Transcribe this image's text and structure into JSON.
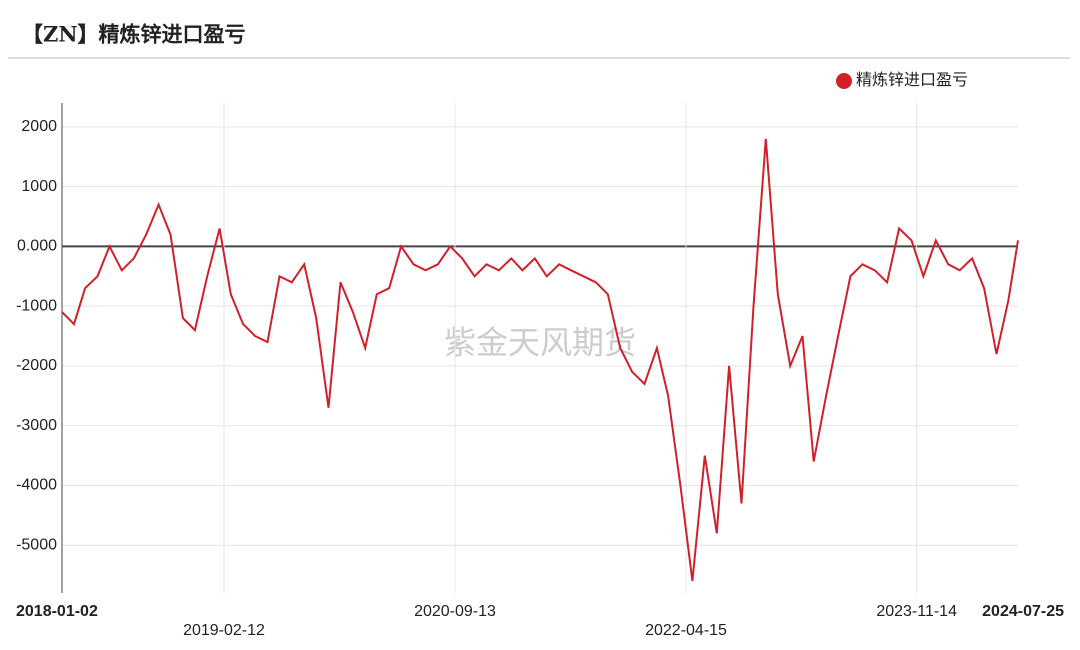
{
  "chart_data": {
    "type": "line",
    "title": "【ZN】精炼锌进口盈亏",
    "watermark": "紫金天风期货",
    "x": [
      "2018-01-02",
      "2018-02-01",
      "2018-03-01",
      "2018-04-01",
      "2018-05-01",
      "2018-06-01",
      "2018-07-01",
      "2018-08-01",
      "2018-09-01",
      "2018-10-01",
      "2018-11-01",
      "2018-12-01",
      "2019-01-01",
      "2019-02-01",
      "2019-03-01",
      "2019-04-01",
      "2019-05-01",
      "2019-06-01",
      "2019-07-01",
      "2019-08-01",
      "2019-09-01",
      "2019-10-01",
      "2019-11-01",
      "2019-12-01",
      "2020-01-01",
      "2020-02-01",
      "2020-03-01",
      "2020-04-01",
      "2020-05-01",
      "2020-06-01",
      "2020-07-01",
      "2020-08-01",
      "2020-09-01",
      "2020-10-01",
      "2020-11-01",
      "2020-12-01",
      "2021-01-01",
      "2021-02-01",
      "2021-03-01",
      "2021-04-01",
      "2021-05-01",
      "2021-06-01",
      "2021-07-01",
      "2021-08-01",
      "2021-09-01",
      "2021-10-01",
      "2021-11-01",
      "2021-12-01",
      "2022-01-01",
      "2022-02-01",
      "2022-03-01",
      "2022-04-01",
      "2022-05-01",
      "2022-06-01",
      "2022-07-01",
      "2022-08-01",
      "2022-09-01",
      "2022-10-01",
      "2022-11-01",
      "2022-12-01",
      "2023-01-01",
      "2023-02-01",
      "2023-03-01",
      "2023-04-01",
      "2023-05-01",
      "2023-06-01",
      "2023-07-01",
      "2023-08-01",
      "2023-09-01",
      "2023-10-01",
      "2023-11-01",
      "2023-12-01",
      "2024-01-01",
      "2024-02-01",
      "2024-03-01",
      "2024-04-01",
      "2024-05-01",
      "2024-06-01",
      "2024-07-01",
      "2024-07-25"
    ],
    "series": [
      {
        "name": "精炼锌进口盈亏",
        "color": "#d0212a",
        "values": [
          -1100,
          -1300,
          -700,
          -500,
          0,
          -400,
          -200,
          200,
          700,
          200,
          -1200,
          -1400,
          -500,
          300,
          -800,
          -1300,
          -1500,
          -1600,
          -500,
          -600,
          -300,
          -1200,
          -2700,
          -600,
          -1100,
          -1700,
          -800,
          -700,
          0,
          -300,
          -400,
          -300,
          0,
          -200,
          -500,
          -300,
          -400,
          -200,
          -400,
          -200,
          -500,
          -300,
          -400,
          -500,
          -600,
          -800,
          -1700,
          -2100,
          -2300,
          -1700,
          -2500,
          -4000,
          -5600,
          -3500,
          -4800,
          -2000,
          -4300,
          -1000,
          1800,
          -800,
          -2000,
          -1500,
          -3600,
          -2500,
          -1500,
          -500,
          -300,
          -400,
          -600,
          300,
          100,
          -500,
          100,
          -300,
          -400,
          -200,
          -700,
          -1800,
          -900,
          100
        ]
      }
    ],
    "xlim": [
      "2018-01-02",
      "2024-07-25"
    ],
    "xticks": [
      "2018-01-02",
      "2019-02-12",
      "2020-09-13",
      "2022-04-15",
      "2023-11-14",
      "2024-07-25"
    ],
    "ylim": [
      -5800,
      2400
    ],
    "yticks": [
      2000,
      1000,
      {
        "value": 0,
        "label": "0.000"
      },
      -1000,
      -2000,
      -3000,
      -4000,
      -5000
    ],
    "grid": true,
    "legend": "top-right"
  }
}
